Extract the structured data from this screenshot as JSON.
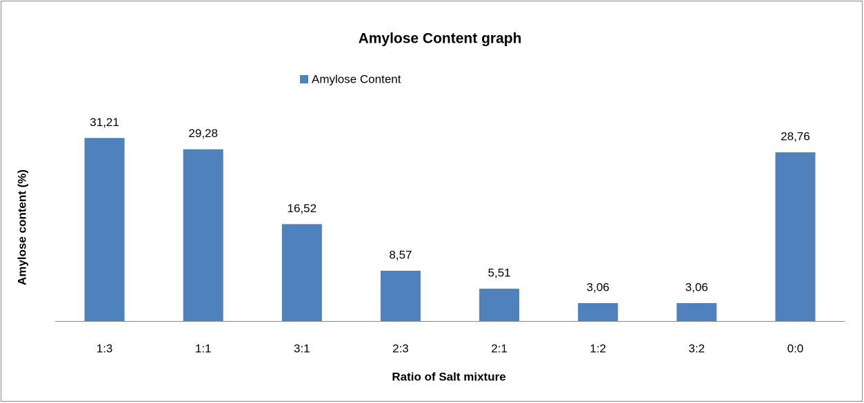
{
  "chart_data": {
    "type": "bar",
    "title": "Amylose Content graph",
    "x_label": "Ratio of Salt mixture",
    "y_label": "Amylose content (%)",
    "categories": [
      "1:3",
      "1:1",
      "3:1",
      "2:3",
      "2:1",
      "1:2",
      "3:2",
      "0:0"
    ],
    "series": [
      {
        "name": "Amylose Content",
        "color": "#4f81bd",
        "values": [
          31.21,
          29.28,
          16.52,
          8.57,
          5.51,
          3.06,
          3.06,
          28.76
        ],
        "value_labels": [
          "31,21",
          "29,28",
          "16,52",
          "8,57",
          "5,51",
          "3,06",
          "3,06",
          "28,76"
        ]
      }
    ],
    "ylim": [
      0,
      35
    ],
    "legend": "top"
  }
}
